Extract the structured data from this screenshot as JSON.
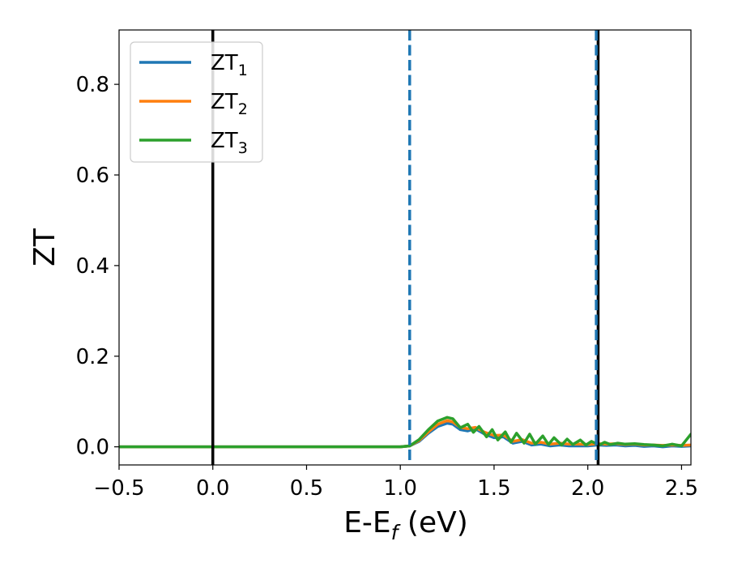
{
  "chart_data": {
    "type": "line",
    "xlabel": "E-E",
    "xlabel_sub": "f",
    "xlabel_suffix": " (eV)",
    "ylabel": "ZT",
    "xlim": [
      -0.5,
      2.55
    ],
    "ylim": [
      -0.04,
      0.92
    ],
    "xticks": [
      -0.5,
      0.0,
      0.5,
      1.0,
      1.5,
      2.0,
      2.5
    ],
    "xtick_labels": [
      "−0.5",
      "0.0",
      "0.5",
      "1.0",
      "1.5",
      "2.0",
      "2.5"
    ],
    "yticks": [
      0.0,
      0.2,
      0.4,
      0.6,
      0.8
    ],
    "ytick_labels": [
      "0.0",
      "0.2",
      "0.4",
      "0.6",
      "0.8"
    ],
    "grid": false,
    "legend_position": "top-left",
    "vlines": [
      {
        "x": 0.0,
        "style": "solid",
        "color": "#000000"
      },
      {
        "x": 2.055,
        "style": "solid",
        "color": "#000000"
      },
      {
        "x": 1.05,
        "style": "dashed",
        "color": "#1f77b4"
      },
      {
        "x": 2.045,
        "style": "dashed",
        "color": "#1f77b4"
      }
    ],
    "series": [
      {
        "name": "ZT",
        "name_sub": "1",
        "color": "#1f77b4",
        "x": [
          -0.5,
          1.0,
          1.05,
          1.1,
          1.15,
          1.2,
          1.25,
          1.28,
          1.32,
          1.36,
          1.4,
          1.45,
          1.5,
          1.55,
          1.6,
          1.65,
          1.7,
          1.75,
          1.8,
          1.85,
          1.9,
          1.95,
          2.0,
          2.05,
          2.1,
          2.15,
          2.2,
          2.25,
          2.3,
          2.35,
          2.4,
          2.45,
          2.5,
          2.55
        ],
        "y": [
          0.0,
          0.0,
          0.002,
          0.012,
          0.03,
          0.045,
          0.052,
          0.05,
          0.038,
          0.035,
          0.04,
          0.028,
          0.02,
          0.022,
          0.008,
          0.012,
          0.004,
          0.006,
          0.002,
          0.004,
          0.002,
          0.002,
          0.002,
          0.004,
          0.003,
          0.004,
          0.002,
          0.003,
          0.001,
          0.002,
          0.0,
          0.002,
          0.001,
          0.002
        ]
      },
      {
        "name": "ZT",
        "name_sub": "2",
        "color": "#ff7f0e",
        "x": [
          -0.5,
          1.0,
          1.05,
          1.1,
          1.15,
          1.2,
          1.25,
          1.28,
          1.32,
          1.36,
          1.4,
          1.45,
          1.5,
          1.55,
          1.6,
          1.65,
          1.7,
          1.75,
          1.8,
          1.85,
          1.9,
          1.95,
          2.0,
          2.05,
          2.1,
          2.15,
          2.2,
          2.25,
          2.3,
          2.35,
          2.4,
          2.45,
          2.5,
          2.55
        ],
        "y": [
          0.0,
          0.0,
          0.002,
          0.014,
          0.033,
          0.05,
          0.058,
          0.055,
          0.043,
          0.04,
          0.043,
          0.032,
          0.025,
          0.026,
          0.012,
          0.016,
          0.008,
          0.01,
          0.006,
          0.008,
          0.006,
          0.006,
          0.005,
          0.007,
          0.006,
          0.007,
          0.005,
          0.006,
          0.004,
          0.004,
          0.003,
          0.004,
          0.003,
          0.004
        ]
      },
      {
        "name": "ZT",
        "name_sub": "3",
        "color": "#2ca02c",
        "x": [
          -0.5,
          1.0,
          1.05,
          1.1,
          1.15,
          1.2,
          1.25,
          1.28,
          1.32,
          1.36,
          1.39,
          1.42,
          1.46,
          1.49,
          1.52,
          1.56,
          1.59,
          1.62,
          1.66,
          1.69,
          1.72,
          1.76,
          1.79,
          1.82,
          1.86,
          1.89,
          1.92,
          1.96,
          1.99,
          2.02,
          2.06,
          2.09,
          2.12,
          2.16,
          2.2,
          2.25,
          2.3,
          2.35,
          2.4,
          2.45,
          2.5,
          2.55
        ],
        "y": [
          0.0,
          0.0,
          0.002,
          0.016,
          0.038,
          0.057,
          0.065,
          0.062,
          0.042,
          0.05,
          0.032,
          0.045,
          0.022,
          0.038,
          0.015,
          0.033,
          0.01,
          0.03,
          0.008,
          0.028,
          0.006,
          0.024,
          0.005,
          0.02,
          0.004,
          0.017,
          0.005,
          0.015,
          0.004,
          0.012,
          0.004,
          0.01,
          0.005,
          0.008,
          0.006,
          0.007,
          0.005,
          0.004,
          0.002,
          0.006,
          0.002,
          0.028
        ]
      }
    ]
  }
}
